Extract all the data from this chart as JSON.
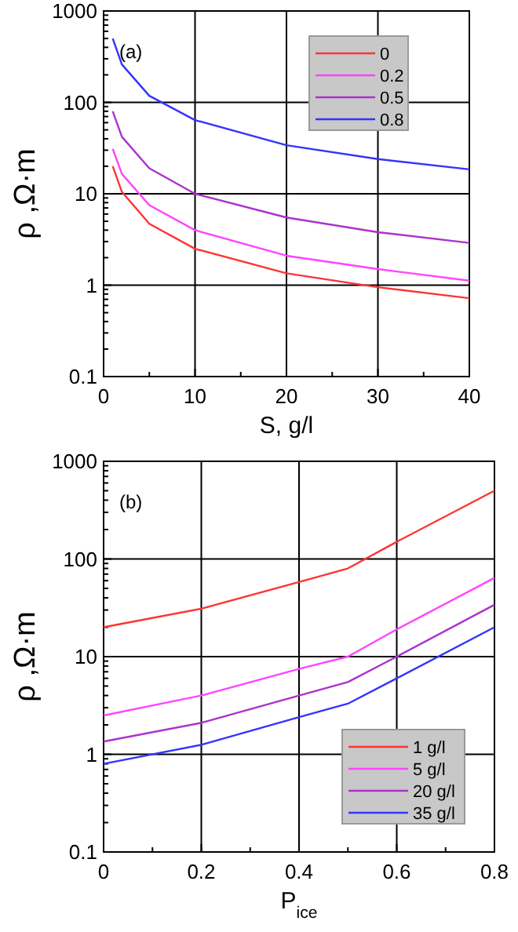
{
  "chart_data": [
    {
      "type": "line",
      "annotations": [
        "(a)"
      ],
      "xlabel": "S, g/l",
      "ylabel": "ρ ,Ω·m",
      "log": "y",
      "grid": true,
      "legend": "top right",
      "x": [
        1,
        2,
        5,
        10,
        20,
        30,
        40
      ],
      "xlim": [
        0,
        40
      ],
      "xticks": [
        0,
        {
          "value": 5,
          "label": null
        },
        10,
        {
          "value": 15,
          "label": null
        },
        20,
        {
          "value": 25,
          "label": null
        },
        30,
        {
          "value": 35,
          "label": null
        },
        40
      ],
      "ylim": [
        0.1,
        1000
      ],
      "yticks": [
        0.1,
        {
          "value": 0.2,
          "label": null
        },
        {
          "value": 0.3,
          "label": null
        },
        {
          "value": 0.4,
          "label": null
        },
        {
          "value": 0.5,
          "label": null
        },
        {
          "value": 0.6,
          "label": null
        },
        {
          "value": 0.7,
          "label": null
        },
        {
          "value": 0.8,
          "label": null
        },
        {
          "value": 0.9,
          "label": null
        },
        1,
        {
          "value": 2,
          "label": null
        },
        {
          "value": 3,
          "label": null
        },
        {
          "value": 4,
          "label": null
        },
        {
          "value": 5,
          "label": null
        },
        {
          "value": 6,
          "label": null
        },
        {
          "value": 7,
          "label": null
        },
        {
          "value": 8,
          "label": null
        },
        {
          "value": 9,
          "label": null
        },
        10,
        {
          "value": 20,
          "label": null
        },
        {
          "value": 30,
          "label": null
        },
        {
          "value": 40,
          "label": null
        },
        {
          "value": 50,
          "label": null
        },
        {
          "value": 60,
          "label": null
        },
        {
          "value": 70,
          "label": null
        },
        {
          "value": 80,
          "label": null
        },
        {
          "value": 90,
          "label": null
        },
        100,
        {
          "value": 200,
          "label": null
        },
        {
          "value": 300,
          "label": null
        },
        {
          "value": 400,
          "label": null
        },
        {
          "value": 500,
          "label": null
        },
        {
          "value": 600,
          "label": null
        },
        {
          "value": 700,
          "label": null
        },
        {
          "value": 800,
          "label": null
        },
        {
          "value": 900,
          "label": null
        },
        1000
      ],
      "series": [
        {
          "name": "0",
          "color": "#ff3333",
          "values": [
            20,
            10.5,
            4.7,
            2.5,
            1.35,
            0.95,
            0.72
          ]
        },
        {
          "name": "0.2",
          "color": "#ff44ff",
          "values": [
            31,
            16.5,
            7.5,
            4,
            2.1,
            1.5,
            1.12
          ]
        },
        {
          "name": "0.5",
          "color": "#aa33cc",
          "values": [
            80,
            42,
            19,
            10,
            5.5,
            3.8,
            2.9
          ]
        },
        {
          "name": "0.8",
          "color": "#3333ff",
          "values": [
            500,
            260,
            118,
            64,
            34,
            24,
            18.5
          ]
        }
      ]
    },
    {
      "type": "line",
      "annotations": [
        "(b)"
      ],
      "xlabel": "P$_{ice}$",
      "ylabel": "ρ ,Ω·m",
      "log": "y",
      "grid": true,
      "legend": "bottom right",
      "x": [
        0,
        0.2,
        0.4,
        0.5,
        0.6,
        0.8
      ],
      "xlim": [
        0,
        0.8
      ],
      "xticks": [
        0,
        {
          "value": 0.1,
          "label": null
        },
        0.2,
        {
          "value": 0.3,
          "label": null
        },
        0.4,
        {
          "value": 0.5,
          "label": null
        },
        0.6,
        {
          "value": 0.7,
          "label": null
        },
        0.8
      ],
      "ylim": [
        0.1,
        1000
      ],
      "yticks": [
        0.1,
        {
          "value": 0.2,
          "label": null
        },
        {
          "value": 0.3,
          "label": null
        },
        {
          "value": 0.4,
          "label": null
        },
        {
          "value": 0.5,
          "label": null
        },
        {
          "value": 0.6,
          "label": null
        },
        {
          "value": 0.7,
          "label": null
        },
        {
          "value": 0.8,
          "label": null
        },
        {
          "value": 0.9,
          "label": null
        },
        1,
        {
          "value": 2,
          "label": null
        },
        {
          "value": 3,
          "label": null
        },
        {
          "value": 4,
          "label": null
        },
        {
          "value": 5,
          "label": null
        },
        {
          "value": 6,
          "label": null
        },
        {
          "value": 7,
          "label": null
        },
        {
          "value": 8,
          "label": null
        },
        {
          "value": 9,
          "label": null
        },
        10,
        {
          "value": 20,
          "label": null
        },
        {
          "value": 30,
          "label": null
        },
        {
          "value": 40,
          "label": null
        },
        {
          "value": 50,
          "label": null
        },
        {
          "value": 60,
          "label": null
        },
        {
          "value": 70,
          "label": null
        },
        {
          "value": 80,
          "label": null
        },
        {
          "value": 90,
          "label": null
        },
        100,
        {
          "value": 200,
          "label": null
        },
        {
          "value": 300,
          "label": null
        },
        {
          "value": 400,
          "label": null
        },
        {
          "value": 500,
          "label": null
        },
        {
          "value": 600,
          "label": null
        },
        {
          "value": 700,
          "label": null
        },
        {
          "value": 800,
          "label": null
        },
        {
          "value": 900,
          "label": null
        },
        1000
      ],
      "series": [
        {
          "name": "1 g/l",
          "color": "#ff3333",
          "values": [
            20,
            31,
            58,
            80,
            150,
            500
          ]
        },
        {
          "name": "5 g/l",
          "color": "#ff44ff",
          "values": [
            2.5,
            4,
            7.5,
            10,
            19,
            64
          ]
        },
        {
          "name": "20 g/l",
          "color": "#aa33cc",
          "values": [
            1.35,
            2.1,
            4,
            5.5,
            10,
            34
          ]
        },
        {
          "name": "35 g/l",
          "color": "#3333ff",
          "values": [
            0.8,
            1.25,
            2.4,
            3.3,
            6,
            20
          ]
        }
      ]
    }
  ]
}
